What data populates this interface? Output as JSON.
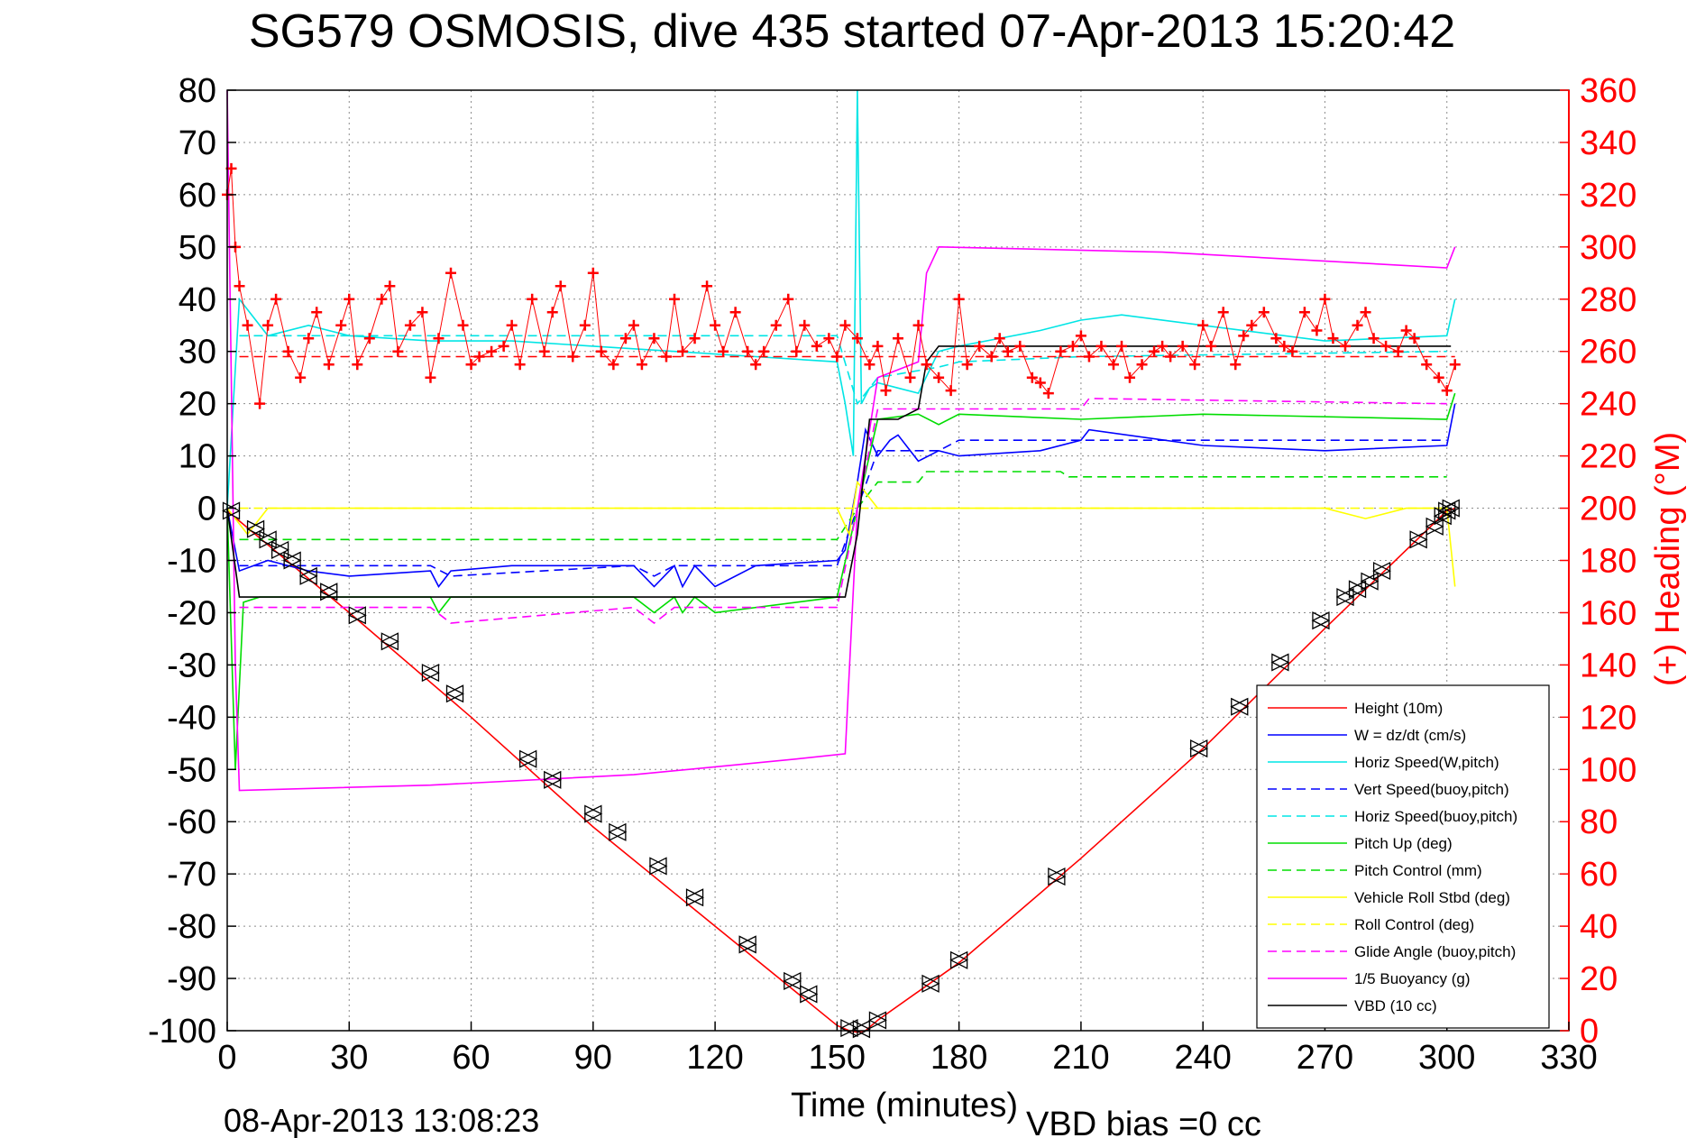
{
  "chart_data": {
    "type": "line",
    "title": "SG579 OSMOSIS, dive 435 started 07-Apr-2013 15:20:42",
    "xlabel": "Time (minutes)",
    "ylabel": "",
    "y2label": "(+) Heading (°M)",
    "xlim": [
      0,
      330
    ],
    "ylim": [
      -100,
      80
    ],
    "y2lim": [
      0,
      360
    ],
    "x_ticks": [
      0,
      30,
      60,
      90,
      120,
      150,
      180,
      210,
      240,
      270,
      300,
      330
    ],
    "y_ticks": [
      80,
      70,
      60,
      50,
      40,
      30,
      20,
      10,
      0,
      -10,
      -20,
      -30,
      -40,
      -50,
      -60,
      -70,
      -80,
      -90,
      -100
    ],
    "y2_ticks": [
      360,
      340,
      320,
      300,
      280,
      260,
      240,
      220,
      200,
      180,
      160,
      140,
      120,
      100,
      80,
      60,
      40,
      20,
      0
    ],
    "grid": true,
    "legend_position": "bottom-right",
    "footer_date": "08-Apr-2013 13:08:23",
    "footer_bias": "VBD bias =0 cc",
    "colors": {
      "red": "#ff0000",
      "blue": "#0000ff",
      "cyan": "#00e5e5",
      "green": "#00dd00",
      "yellow": "#ffff00",
      "magenta": "#ff00ff",
      "black": "#000000"
    },
    "series": [
      {
        "name": "Height (10m)",
        "color": "#ff0000",
        "dash": "solid",
        "x": [
          0,
          30,
          60,
          90,
          120,
          150,
          153,
          155,
          157,
          160,
          180,
          210,
          240,
          270,
          300,
          302
        ],
        "y": [
          -0.5,
          -20,
          -40,
          -61,
          -80,
          -99,
          -100,
          -100.3,
          -100,
          -98,
          -87,
          -67,
          -46,
          -23,
          -0.5,
          0
        ]
      },
      {
        "name": "W = dz/dt (cm/s)",
        "color": "#0000ff",
        "dash": "solid",
        "x": [
          0,
          3,
          10,
          20,
          30,
          50,
          52,
          55,
          70,
          100,
          105,
          110,
          112,
          115,
          120,
          130,
          150,
          152,
          155,
          157,
          160,
          163,
          165,
          170,
          175,
          180,
          200,
          210,
          212,
          240,
          270,
          300,
          302
        ],
        "y": [
          0,
          -12,
          -10,
          -12,
          -13,
          -12,
          -15,
          -12,
          -11,
          -11,
          -15,
          -11,
          -15,
          -11,
          -15,
          -11,
          -10,
          -8,
          5,
          15,
          10,
          13,
          14,
          9,
          11,
          10,
          11,
          13,
          15,
          12,
          11,
          12,
          20
        ]
      },
      {
        "name": "Horiz Speed(W,pitch)",
        "color": "#00e5e5",
        "dash": "solid",
        "x": [
          0,
          3,
          10,
          20,
          30,
          50,
          70,
          90,
          110,
          130,
          150,
          152,
          154,
          155,
          156,
          158,
          160,
          165,
          170,
          175,
          180,
          200,
          210,
          220,
          240,
          270,
          300,
          302
        ],
        "y": [
          0,
          40,
          33,
          35,
          33,
          32,
          32,
          31,
          30,
          29,
          28,
          20,
          10,
          80,
          20,
          23,
          24,
          23,
          22,
          30,
          31,
          34,
          36,
          37,
          35,
          32,
          33,
          40
        ]
      },
      {
        "name": "Vert Speed(buoy,pitch)",
        "color": "#0000ff",
        "dash": "dashed",
        "x": [
          3,
          50,
          55,
          100,
          105,
          110,
          150,
          155,
          160,
          175,
          180,
          210,
          300
        ],
        "y": [
          -11,
          -11,
          -13,
          -11,
          -13,
          -11,
          -11,
          0,
          11,
          11,
          13,
          13,
          13
        ]
      },
      {
        "name": "Horiz Speed(buoy,pitch)",
        "color": "#00e5e5",
        "dash": "dashed",
        "x": [
          3,
          50,
          100,
          150,
          155,
          160,
          175,
          180,
          210,
          300
        ],
        "y": [
          33,
          33,
          33,
          33,
          20,
          25,
          27,
          28,
          29,
          30
        ]
      },
      {
        "name": "Pitch Up (deg)",
        "color": "#00dd00",
        "dash": "solid",
        "x": [
          0,
          2,
          4,
          8,
          20,
          50,
          52,
          55,
          100,
          105,
          110,
          112,
          115,
          120,
          150,
          155,
          160,
          170,
          175,
          180,
          210,
          240,
          300,
          302
        ],
        "y": [
          0,
          -50,
          -18,
          -17,
          -17,
          -17,
          -20,
          -17,
          -17,
          -20,
          -17,
          -20,
          -17,
          -20,
          -17,
          0,
          17,
          18,
          16,
          18,
          17,
          18,
          17,
          22
        ]
      },
      {
        "name": "Pitch Control (mm)",
        "color": "#00dd00",
        "dash": "dashed",
        "x": [
          3,
          150,
          155,
          160,
          170,
          172,
          175,
          205,
          207,
          300
        ],
        "y": [
          -6,
          -6,
          0,
          5,
          5,
          7,
          7,
          7,
          6,
          6
        ]
      },
      {
        "name": "Vehicle Roll Stbd (deg)",
        "color": "#ffff00",
        "dash": "solid",
        "x": [
          0,
          5,
          10,
          15,
          20,
          25,
          30,
          50,
          55,
          60,
          80,
          100,
          120,
          140,
          150,
          153,
          155,
          157,
          160,
          180,
          210,
          240,
          270,
          280,
          290,
          300,
          302
        ],
        "y": [
          0,
          -5,
          0,
          0,
          0,
          0,
          0,
          0,
          0,
          0,
          0,
          0,
          0,
          0,
          0,
          -5,
          5,
          3,
          0,
          0,
          0,
          0,
          0,
          -2,
          0,
          0,
          -15
        ]
      },
      {
        "name": "Roll Control (deg)",
        "color": "#ffff00",
        "dash": "dashed",
        "x": [
          3,
          150,
          155,
          160,
          300
        ],
        "y": [
          0,
          0,
          0,
          0,
          0
        ]
      },
      {
        "name": "Glide Angle (buoy,pitch)",
        "color": "#ff00ff",
        "dash": "dashed",
        "x": [
          3,
          50,
          55,
          100,
          105,
          110,
          150,
          155,
          160,
          175,
          180,
          210,
          212,
          300
        ],
        "y": [
          -19,
          -19,
          -22,
          -19,
          -22,
          -19,
          -19,
          0,
          19,
          19,
          19,
          19,
          21,
          20
        ]
      },
      {
        "name": "1/5 Buoyancy (g)",
        "color": "#ff00ff",
        "dash": "solid",
        "x": [
          0,
          2,
          3,
          50,
          100,
          140,
          152,
          155,
          160,
          170,
          172,
          175,
          230,
          300,
          302
        ],
        "y": [
          80,
          -30,
          -54,
          -53,
          -51,
          -48,
          -47,
          0,
          25,
          28,
          45,
          50,
          49,
          46,
          50
        ]
      },
      {
        "name": "VBD (10 cc)",
        "color": "#000000",
        "dash": "solid",
        "x": [
          0,
          3,
          150,
          152,
          155,
          158,
          165,
          170,
          172,
          175,
          300,
          301
        ],
        "y": [
          0,
          -17,
          -17,
          -17,
          -5,
          17,
          17,
          19,
          28,
          31,
          31,
          31
        ]
      }
    ],
    "heading": {
      "name": "(+) Heading",
      "color": "#ff0000",
      "x": [
        0,
        1,
        2,
        3,
        5,
        8,
        10,
        12,
        15,
        18,
        20,
        22,
        25,
        28,
        30,
        32,
        35,
        38,
        40,
        42,
        45,
        48,
        50,
        52,
        55,
        58,
        60,
        62,
        65,
        68,
        70,
        72,
        75,
        78,
        80,
        82,
        85,
        88,
        90,
        92,
        95,
        98,
        100,
        102,
        105,
        108,
        110,
        112,
        115,
        118,
        120,
        122,
        125,
        128,
        130,
        132,
        135,
        138,
        140,
        142,
        145,
        148,
        150,
        152,
        155,
        158,
        160,
        162,
        165,
        168,
        170,
        172,
        175,
        178,
        180,
        182,
        185,
        188,
        190,
        192,
        195,
        198,
        200,
        202,
        205,
        208,
        210,
        212,
        215,
        218,
        220,
        222,
        225,
        228,
        230,
        232,
        235,
        238,
        240,
        242,
        245,
        248,
        250,
        252,
        255,
        258,
        260,
        262,
        265,
        268,
        270,
        272,
        275,
        278,
        280,
        282,
        285,
        288,
        290,
        292,
        295,
        298,
        300,
        302
      ],
      "y": [
        320,
        330,
        300,
        285,
        270,
        240,
        270,
        280,
        260,
        250,
        265,
        275,
        255,
        270,
        280,
        255,
        265,
        280,
        285,
        260,
        270,
        275,
        250,
        265,
        290,
        270,
        255,
        258,
        260,
        262,
        270,
        255,
        280,
        260,
        275,
        285,
        258,
        270,
        290,
        260,
        255,
        265,
        270,
        255,
        265,
        258,
        280,
        260,
        265,
        285,
        270,
        260,
        275,
        260,
        255,
        260,
        270,
        280,
        260,
        270,
        262,
        265,
        258,
        270,
        265,
        255,
        262,
        245,
        265,
        250,
        270,
        255,
        250,
        245,
        280,
        255,
        262,
        258,
        265,
        260,
        262,
        250,
        248,
        244,
        260,
        262,
        266,
        258,
        262,
        255,
        262,
        250,
        255,
        260,
        262,
        258,
        262,
        255,
        270,
        262,
        275,
        255,
        266,
        270,
        275,
        265,
        262,
        260,
        275,
        268,
        280,
        265,
        262,
        270,
        275,
        265,
        262,
        260,
        268,
        265,
        255,
        250,
        245,
        255
      ],
      "reference_line": 258
    },
    "markers": {
      "name": "Height markers",
      "color": "#000000",
      "x": [
        1,
        7,
        10,
        13,
        16,
        20,
        25,
        32,
        40,
        50,
        56,
        74,
        80,
        90,
        96,
        106,
        115,
        128,
        139,
        143,
        153,
        156,
        160,
        173,
        180,
        204,
        239,
        249,
        259,
        269,
        275,
        278,
        281,
        284,
        293,
        297,
        299,
        300,
        301
      ],
      "y": [
        -0.5,
        -4,
        -6,
        -8,
        -10,
        -13,
        -16,
        -20.5,
        -25.5,
        -31.5,
        -35.5,
        -48,
        -52,
        -58.5,
        -62,
        -68.5,
        -74.5,
        -83.5,
        -90.5,
        -93,
        -99.5,
        -99.7,
        -98,
        -91,
        -86.5,
        -70.5,
        -46,
        -38,
        -29.5,
        -21.5,
        -17,
        -15.5,
        -14,
        -12,
        -6,
        -3.5,
        -1.5,
        -0.5,
        0
      ]
    }
  }
}
